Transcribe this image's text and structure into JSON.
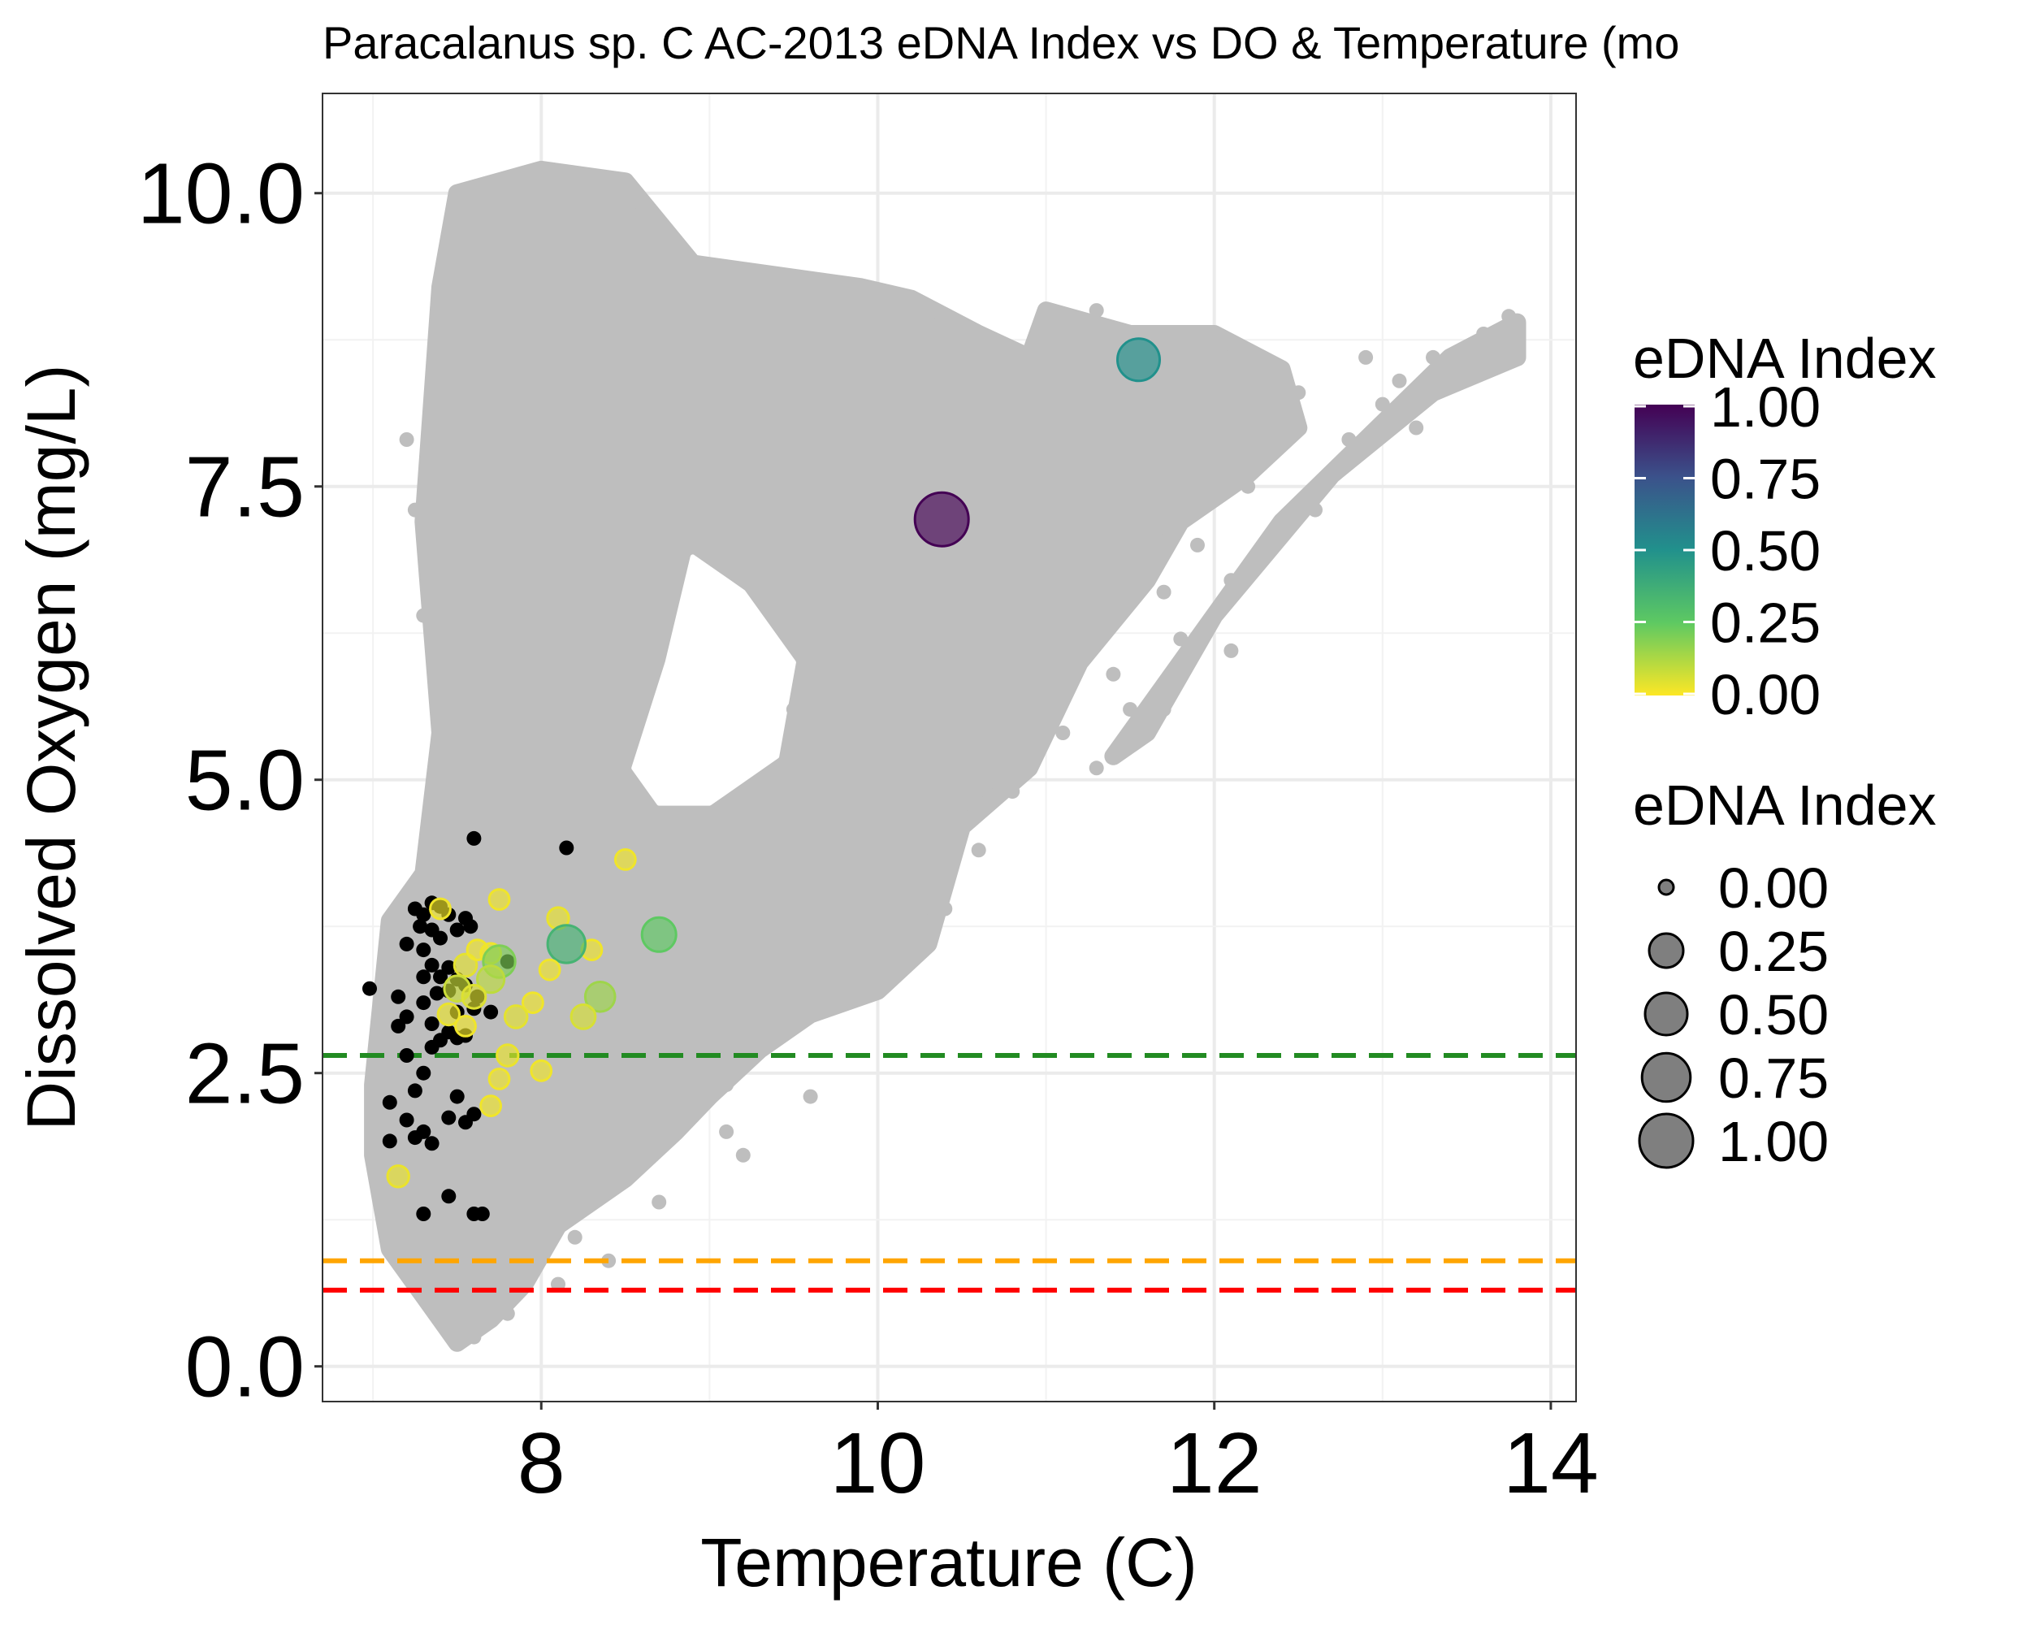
{
  "chart_data": {
    "type": "scatter",
    "title": "Paracalanus sp. C AC-2013 eDNA Index vs DO & Temperature (mo",
    "xlabel": "Temperature (C)",
    "ylabel": "Dissolved Oxygen (mg/L)",
    "xlim": [
      6.7,
      14.15
    ],
    "ylim": [
      -0.3,
      10.85
    ],
    "x_ticks": [
      8,
      10,
      12,
      14
    ],
    "x_tick_labels": [
      "8",
      "10",
      "12",
      "14"
    ],
    "y_ticks": [
      0.0,
      2.5,
      5.0,
      7.5,
      10.0
    ],
    "y_tick_labels": [
      "0.0",
      "2.5",
      "5.0",
      "7.5",
      "10.0"
    ],
    "grid": true,
    "reference_lines": [
      {
        "y": 2.65,
        "color": "#228B22",
        "style": "dashed"
      },
      {
        "y": 0.9,
        "color": "#FFA500",
        "style": "dashed"
      },
      {
        "y": 0.65,
        "color": "#FF0000",
        "style": "dashed"
      }
    ],
    "background_region_color": "#BEBEBE",
    "background_regions": [
      [
        [
          7.0,
          2.4
        ],
        [
          7.1,
          3.8
        ],
        [
          7.3,
          4.2
        ],
        [
          7.4,
          5.4
        ],
        [
          7.3,
          7.2
        ],
        [
          7.4,
          9.2
        ],
        [
          7.5,
          10.0
        ],
        [
          8.0,
          10.2
        ],
        [
          8.5,
          10.1
        ],
        [
          8.9,
          9.4
        ],
        [
          9.9,
          9.2
        ],
        [
          10.2,
          9.1
        ],
        [
          10.6,
          8.8
        ],
        [
          10.9,
          8.6
        ],
        [
          11.0,
          9.0
        ],
        [
          11.5,
          8.8
        ],
        [
          12.0,
          8.8
        ],
        [
          12.4,
          8.5
        ],
        [
          12.5,
          8.0
        ],
        [
          12.2,
          7.6
        ],
        [
          11.8,
          7.2
        ],
        [
          11.6,
          6.7
        ],
        [
          11.2,
          6.0
        ],
        [
          10.9,
          5.1
        ],
        [
          10.5,
          4.6
        ],
        [
          10.3,
          3.6
        ],
        [
          10.0,
          3.2
        ],
        [
          9.6,
          3.0
        ],
        [
          9.3,
          2.7
        ],
        [
          9.0,
          2.3
        ],
        [
          8.8,
          2.0
        ],
        [
          8.5,
          1.6
        ],
        [
          8.1,
          1.2
        ],
        [
          7.9,
          0.7
        ],
        [
          7.7,
          0.4
        ],
        [
          7.5,
          0.2
        ],
        [
          7.4,
          0.4
        ],
        [
          7.3,
          0.6
        ],
        [
          7.1,
          1.0
        ],
        [
          7.0,
          1.8
        ]
      ],
      [
        [
          11.4,
          5.2
        ],
        [
          12.4,
          7.2
        ],
        [
          13.4,
          8.6
        ],
        [
          13.8,
          8.9
        ],
        [
          13.8,
          8.6
        ],
        [
          13.3,
          8.3
        ],
        [
          12.7,
          7.6
        ],
        [
          12.0,
          6.4
        ],
        [
          11.6,
          5.4
        ]
      ]
    ],
    "hole_regions": [
      [
        [
          8.55,
          5.1
        ],
        [
          8.75,
          6.0
        ],
        [
          8.9,
          6.9
        ],
        [
          9.2,
          6.6
        ],
        [
          9.5,
          6.0
        ],
        [
          9.4,
          5.2
        ],
        [
          9.0,
          4.8
        ],
        [
          8.7,
          4.8
        ]
      ]
    ],
    "background_extra_points": [
      [
        7.05,
        2.6
      ],
      [
        7.1,
        3.0
      ],
      [
        7.2,
        3.6
      ],
      [
        7.35,
        4.2
      ],
      [
        7.4,
        4.9
      ],
      [
        7.45,
        6.0
      ],
      [
        7.4,
        7.8
      ],
      [
        7.5,
        9.6
      ],
      [
        7.6,
        8.3
      ],
      [
        7.7,
        9.8
      ],
      [
        7.9,
        10.0
      ],
      [
        8.3,
        10.1
      ],
      [
        8.6,
        9.9
      ],
      [
        9.4,
        7.6
      ],
      [
        9.9,
        7.0
      ],
      [
        10.3,
        8.9
      ],
      [
        10.7,
        8.4
      ],
      [
        11.1,
        8.9
      ],
      [
        11.3,
        9.0
      ],
      [
        11.7,
        8.8
      ],
      [
        12.1,
        8.6
      ],
      [
        12.3,
        8.2
      ],
      [
        12.2,
        7.5
      ],
      [
        11.9,
        7.0
      ],
      [
        11.7,
        6.6
      ],
      [
        11.4,
        5.9
      ],
      [
        11.1,
        5.4
      ],
      [
        10.8,
        4.9
      ],
      [
        10.6,
        4.4
      ],
      [
        10.4,
        3.9
      ],
      [
        10.2,
        3.5
      ],
      [
        9.8,
        3.1
      ],
      [
        9.4,
        2.8
      ],
      [
        9.1,
        2.4
      ],
      [
        8.8,
        2.1
      ],
      [
        9.1,
        2.0
      ],
      [
        8.5,
        1.7
      ],
      [
        8.2,
        1.1
      ],
      [
        8.1,
        0.7
      ],
      [
        7.8,
        0.45
      ],
      [
        7.6,
        0.25
      ],
      [
        7.5,
        0.2
      ],
      [
        7.3,
        0.6
      ],
      [
        7.2,
        1.2
      ],
      [
        7.0,
        2.0
      ],
      [
        7.2,
        7.9
      ],
      [
        7.25,
        7.3
      ],
      [
        7.3,
        6.4
      ],
      [
        7.9,
        6.9
      ],
      [
        8.4,
        7.4
      ],
      [
        8.2,
        6.4
      ],
      [
        8.1,
        5.8
      ],
      [
        9.7,
        4.0
      ],
      [
        10.0,
        4.6
      ],
      [
        10.5,
        5.6
      ],
      [
        11.0,
        6.4
      ],
      [
        11.5,
        7.1
      ],
      [
        12.0,
        7.8
      ],
      [
        12.5,
        8.3
      ],
      [
        12.9,
        8.6
      ],
      [
        13.1,
        8.4
      ],
      [
        13.2,
        8.0
      ],
      [
        12.6,
        7.3
      ],
      [
        12.3,
        7.0
      ],
      [
        12.1,
        6.7
      ],
      [
        11.8,
        6.2
      ],
      [
        11.3,
        5.1
      ],
      [
        11.5,
        5.6
      ],
      [
        12.8,
        7.9
      ],
      [
        13.0,
        8.2
      ],
      [
        13.3,
        8.6
      ],
      [
        13.6,
        8.8
      ],
      [
        13.75,
        8.95
      ],
      [
        13.5,
        8.5
      ],
      [
        12.1,
        6.1
      ],
      [
        11.7,
        5.6
      ],
      [
        10.6,
        7.2
      ],
      [
        10.9,
        7.8
      ],
      [
        11.2,
        8.1
      ],
      [
        9.6,
        2.3
      ],
      [
        9.2,
        1.8
      ],
      [
        8.7,
        1.4
      ],
      [
        8.4,
        0.9
      ],
      [
        7.9,
        1.3
      ],
      [
        7.6,
        0.8
      ],
      [
        7.35,
        0.5
      ],
      [
        8.9,
        4.2
      ],
      [
        9.3,
        4.6
      ],
      [
        8.3,
        4.4
      ],
      [
        9.0,
        3.4
      ],
      [
        8.0,
        3.3
      ],
      [
        7.7,
        1.9
      ],
      [
        8.05,
        2.6
      ],
      [
        9.5,
        5.6
      ],
      [
        10.1,
        6.2
      ]
    ],
    "size_scale": {
      "min_value": 0.0,
      "max_value": 1.0,
      "min_radius": 9,
      "max_radius": 33
    },
    "color_scale": {
      "name": "viridis",
      "stops": [
        {
          "value": 0.0,
          "color": "#FDE725"
        },
        {
          "value": 0.25,
          "color": "#5EC962"
        },
        {
          "value": 0.5,
          "color": "#21918C"
        },
        {
          "value": 0.75,
          "color": "#3B528B"
        },
        {
          "value": 1.0,
          "color": "#440154"
        }
      ]
    },
    "zero_points_color": "#000000",
    "zero_points": [
      [
        7.6,
        4.5
      ],
      [
        8.15,
        4.42
      ],
      [
        7.35,
        3.95
      ],
      [
        7.4,
        3.92
      ],
      [
        7.25,
        3.9
      ],
      [
        7.3,
        3.85
      ],
      [
        7.45,
        3.85
      ],
      [
        7.55,
        3.82
      ],
      [
        7.28,
        3.75
      ],
      [
        7.35,
        3.72
      ],
      [
        7.5,
        3.72
      ],
      [
        7.58,
        3.75
      ],
      [
        7.4,
        3.65
      ],
      [
        7.2,
        3.6
      ],
      [
        7.3,
        3.55
      ],
      [
        7.8,
        3.45
      ],
      [
        7.35,
        3.42
      ],
      [
        7.45,
        3.4
      ],
      [
        7.3,
        3.32
      ],
      [
        7.4,
        3.32
      ],
      [
        7.5,
        3.3
      ],
      [
        7.55,
        3.25
      ],
      [
        7.45,
        3.2
      ],
      [
        7.38,
        3.18
      ],
      [
        6.98,
        3.22
      ],
      [
        7.15,
        3.15
      ],
      [
        7.62,
        3.15
      ],
      [
        7.3,
        3.1
      ],
      [
        7.5,
        3.02
      ],
      [
        7.7,
        3.02
      ],
      [
        7.6,
        3.05
      ],
      [
        7.2,
        2.98
      ],
      [
        7.35,
        2.92
      ],
      [
        7.15,
        2.9
      ],
      [
        7.45,
        2.85
      ],
      [
        7.55,
        2.82
      ],
      [
        7.4,
        2.78
      ],
      [
        7.5,
        2.8
      ],
      [
        7.35,
        2.72
      ],
      [
        7.2,
        2.65
      ],
      [
        7.3,
        2.5
      ],
      [
        7.1,
        2.25
      ],
      [
        7.25,
        2.35
      ],
      [
        7.5,
        2.3
      ],
      [
        7.6,
        2.15
      ],
      [
        7.2,
        2.1
      ],
      [
        7.45,
        2.12
      ],
      [
        7.55,
        2.08
      ],
      [
        7.3,
        2.0
      ],
      [
        7.1,
        1.92
      ],
      [
        7.25,
        1.95
      ],
      [
        7.35,
        1.9
      ],
      [
        7.45,
        1.45
      ],
      [
        7.3,
        1.3
      ],
      [
        7.6,
        1.3
      ],
      [
        7.65,
        1.3
      ]
    ],
    "positive_points": [
      {
        "x": 8.5,
        "y": 4.32,
        "value": 0.02
      },
      {
        "x": 7.75,
        "y": 3.98,
        "value": 0.02
      },
      {
        "x": 8.1,
        "y": 3.82,
        "value": 0.03
      },
      {
        "x": 7.4,
        "y": 3.9,
        "value": 0.02
      },
      {
        "x": 8.3,
        "y": 3.55,
        "value": 0.02
      },
      {
        "x": 8.15,
        "y": 3.6,
        "value": 0.35
      },
      {
        "x": 8.7,
        "y": 3.68,
        "value": 0.25
      },
      {
        "x": 7.7,
        "y": 3.52,
        "value": 0.02
      },
      {
        "x": 7.55,
        "y": 3.42,
        "value": 0.04
      },
      {
        "x": 7.62,
        "y": 3.55,
        "value": 0.02
      },
      {
        "x": 7.75,
        "y": 3.45,
        "value": 0.2
      },
      {
        "x": 7.7,
        "y": 3.3,
        "value": 0.1
      },
      {
        "x": 8.05,
        "y": 3.38,
        "value": 0.02
      },
      {
        "x": 7.5,
        "y": 3.22,
        "value": 0.08
      },
      {
        "x": 7.6,
        "y": 3.15,
        "value": 0.05
      },
      {
        "x": 8.35,
        "y": 3.15,
        "value": 0.15
      },
      {
        "x": 7.95,
        "y": 3.1,
        "value": 0.02
      },
      {
        "x": 7.85,
        "y": 2.98,
        "value": 0.04
      },
      {
        "x": 7.45,
        "y": 3.0,
        "value": 0.03
      },
      {
        "x": 8.25,
        "y": 2.98,
        "value": 0.06
      },
      {
        "x": 7.55,
        "y": 2.9,
        "value": 0.02
      },
      {
        "x": 7.8,
        "y": 2.65,
        "value": 0.03
      },
      {
        "x": 8.0,
        "y": 2.52,
        "value": 0.02
      },
      {
        "x": 7.75,
        "y": 2.45,
        "value": 0.02
      },
      {
        "x": 7.7,
        "y": 2.22,
        "value": 0.02
      },
      {
        "x": 7.15,
        "y": 1.62,
        "value": 0.03
      },
      {
        "x": 10.38,
        "y": 7.22,
        "value": 1.0
      },
      {
        "x": 11.55,
        "y": 8.58,
        "value": 0.5
      }
    ],
    "legends": [
      {
        "type": "colorbar",
        "title": "eDNA Index",
        "labels": [
          "1.00",
          "0.75",
          "0.50",
          "0.25",
          "0.00"
        ]
      },
      {
        "type": "size",
        "title": "eDNA Index",
        "values": [
          0.0,
          0.25,
          0.5,
          0.75,
          1.0
        ],
        "labels": [
          "0.00",
          "0.25",
          "0.50",
          "0.75",
          "1.00"
        ]
      }
    ],
    "legend_position": "right"
  }
}
